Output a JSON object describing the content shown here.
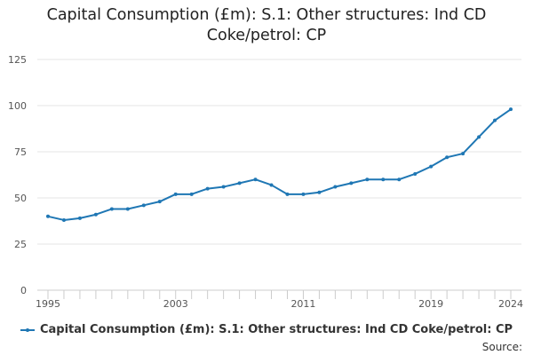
{
  "chart_data": {
    "type": "line",
    "title_lines": [
      "Capital Consumption (£m): S.1: Other structures: Ind CD",
      "Coke/petrol: CP"
    ],
    "x": [
      1995,
      1996,
      1997,
      1998,
      1999,
      2000,
      2001,
      2002,
      2003,
      2004,
      2005,
      2006,
      2007,
      2008,
      2009,
      2010,
      2011,
      2012,
      2013,
      2014,
      2015,
      2016,
      2017,
      2018,
      2019,
      2020,
      2021,
      2022,
      2023,
      2024
    ],
    "series": [
      {
        "name": "Capital Consumption (£m): S.1: Other structures: Ind CD Coke/petrol: CP",
        "values": [
          40,
          38,
          39,
          41,
          44,
          44,
          46,
          48,
          52,
          52,
          55,
          56,
          58,
          60,
          57,
          52,
          52,
          53,
          56,
          58,
          60,
          60,
          60,
          63,
          67,
          72,
          74,
          83,
          92,
          98
        ],
        "color": "#1f77b4"
      }
    ],
    "x_ticks": [
      1995,
      2003,
      2011,
      2019,
      2024
    ],
    "y_ticks": [
      0,
      25,
      50,
      75,
      100,
      125
    ],
    "ylim": [
      0,
      125
    ],
    "xlim": [
      1995,
      2024
    ],
    "grid": true,
    "legend_position": "bottom",
    "xlabel": "",
    "ylabel": ""
  },
  "footer": {
    "source_label": "Source:"
  }
}
